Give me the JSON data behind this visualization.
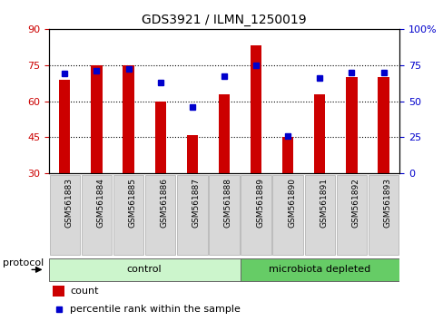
{
  "title": "GDS3921 / ILMN_1250019",
  "samples": [
    "GSM561883",
    "GSM561884",
    "GSM561885",
    "GSM561886",
    "GSM561887",
    "GSM561888",
    "GSM561889",
    "GSM561890",
    "GSM561891",
    "GSM561892",
    "GSM561893"
  ],
  "counts": [
    69,
    75,
    75,
    60,
    46,
    63,
    83,
    45,
    63,
    70,
    70
  ],
  "percentiles": [
    69,
    71,
    72,
    63,
    46,
    67,
    75,
    26,
    66,
    70,
    70
  ],
  "groups": [
    {
      "label": "control",
      "start": 0,
      "end": 6,
      "color": "#ccf5cc"
    },
    {
      "label": "microbiota depleted",
      "start": 6,
      "end": 11,
      "color": "#66cc66"
    }
  ],
  "left_ylim": [
    30,
    90
  ],
  "right_ylim": [
    0,
    100
  ],
  "left_yticks": [
    30,
    45,
    60,
    75,
    90
  ],
  "right_yticks": [
    0,
    25,
    50,
    75,
    100
  ],
  "right_yticklabels": [
    "0",
    "25",
    "50",
    "75",
    "100%"
  ],
  "bar_color": "#cc0000",
  "point_color": "#0000cc",
  "grid_color": "#000000",
  "bg_color": "#ffffff",
  "plot_bg": "#ffffff",
  "tick_box_color": "#d8d8d8",
  "legend_count_label": "count",
  "legend_pct_label": "percentile rank within the sample",
  "protocol_label": "protocol"
}
